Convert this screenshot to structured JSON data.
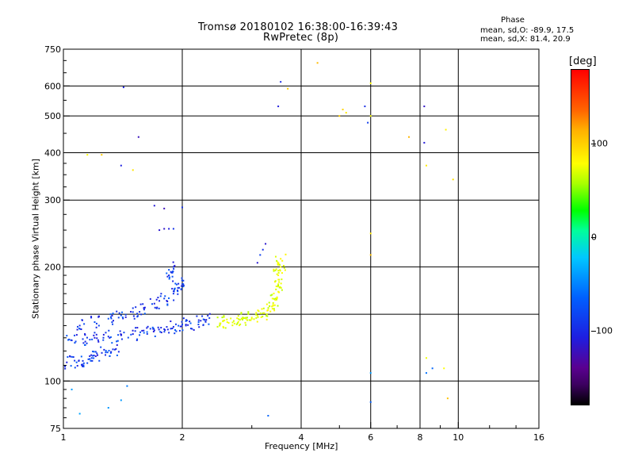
{
  "header": {
    "title_line1": "Tromsø 20180102 16:38:00-16:39:43",
    "title_line2": "RwPretec (8p)"
  },
  "phase_box": {
    "title": "Phase",
    "line_o": "mean, sd,O: -89.9, 17.5",
    "line_x": "mean, sd,X:  81.4, 20.9"
  },
  "colorbar": {
    "unit": "[deg]",
    "ticks": [
      {
        "label": "100",
        "value": 100
      },
      {
        "label": "0",
        "value": 0
      },
      {
        "label": "-100",
        "value": -100
      }
    ],
    "range": [
      -180,
      180
    ]
  },
  "chart_data": {
    "type": "scatter",
    "title": "Tromsø 20180102 16:38:00-16:39:43",
    "subtitle": "RwPretec (8p)",
    "xlabel": "Frequency [MHz]",
    "ylabel": "Stationary phase Virtual Height [km]",
    "x_scale": "log",
    "y_scale": "log",
    "xlim": [
      1,
      16
    ],
    "ylim": [
      75,
      750
    ],
    "x_ticks": [
      {
        "value": 1,
        "label": "1"
      },
      {
        "value": 2,
        "label": "2"
      },
      {
        "value": 4,
        "label": "4"
      },
      {
        "value": 6,
        "label": "6"
      },
      {
        "value": 8,
        "label": "8"
      },
      {
        "value": 10,
        "label": "10"
      },
      {
        "value": 16,
        "label": "16"
      }
    ],
    "x_grid": [
      2,
      4,
      6,
      8,
      10
    ],
    "y_ticks": [
      {
        "value": 75,
        "label": "75"
      },
      {
        "value": 100,
        "label": "100"
      },
      {
        "value": 200,
        "label": "200"
      },
      {
        "value": 300,
        "label": "300"
      },
      {
        "value": 400,
        "label": "400"
      },
      {
        "value": 500,
        "label": "500"
      },
      {
        "value": 600,
        "label": "600"
      },
      {
        "value": 750,
        "label": "750"
      }
    ],
    "y_grid": [
      100,
      150,
      200,
      300,
      400,
      500,
      600
    ],
    "grid": true,
    "colorbar_label": "[deg]",
    "color_value": "phase (deg)",
    "series": [
      {
        "name": "O-mode F-layer trace (blue)",
        "phase": -95,
        "points": [
          [
            1.02,
            112
          ],
          [
            1.08,
            112
          ],
          [
            1.12,
            113
          ],
          [
            1.18,
            115
          ],
          [
            1.22,
            117
          ],
          [
            1.28,
            119
          ],
          [
            1.35,
            121
          ],
          [
            1.05,
            128
          ],
          [
            1.12,
            129
          ],
          [
            1.2,
            130
          ],
          [
            1.3,
            131
          ],
          [
            1.4,
            132
          ],
          [
            1.5,
            133
          ],
          [
            1.6,
            134
          ],
          [
            1.7,
            136
          ],
          [
            1.8,
            137
          ],
          [
            1.9,
            139
          ],
          [
            2.0,
            141
          ],
          [
            2.1,
            142
          ],
          [
            2.2,
            143
          ],
          [
            2.3,
            145
          ],
          [
            1.1,
            140
          ],
          [
            1.2,
            143
          ],
          [
            1.3,
            146
          ],
          [
            1.4,
            149
          ],
          [
            1.5,
            152
          ],
          [
            1.6,
            156
          ],
          [
            1.7,
            160
          ],
          [
            1.8,
            165
          ],
          [
            1.9,
            170
          ],
          [
            1.95,
            176
          ],
          [
            2.0,
            180
          ],
          [
            1.85,
            190
          ],
          [
            1.9,
            200
          ]
        ]
      },
      {
        "name": "X-mode F-layer trace (yellow-green)",
        "phase": 85,
        "points": [
          [
            2.5,
            142
          ],
          [
            2.6,
            143
          ],
          [
            2.7,
            144
          ],
          [
            2.8,
            145
          ],
          [
            2.9,
            146
          ],
          [
            3.0,
            147
          ],
          [
            3.1,
            149
          ],
          [
            3.2,
            151
          ],
          [
            3.3,
            154
          ],
          [
            3.4,
            158
          ],
          [
            3.45,
            165
          ],
          [
            3.5,
            172
          ],
          [
            3.5,
            180
          ],
          [
            3.5,
            190
          ],
          [
            3.55,
            200
          ],
          [
            3.55,
            210
          ]
        ]
      },
      {
        "name": "Upper oblique echoes (blue/purple)",
        "phase": -110,
        "points": [
          [
            1.75,
            250
          ],
          [
            1.8,
            252
          ],
          [
            1.85,
            252
          ],
          [
            1.9,
            252
          ],
          [
            1.7,
            290
          ],
          [
            1.8,
            285
          ],
          [
            2.0,
            287
          ],
          [
            3.1,
            205
          ],
          [
            3.15,
            215
          ],
          [
            3.2,
            222
          ],
          [
            3.25,
            230
          ],
          [
            3.5,
            530
          ],
          [
            3.55,
            615
          ],
          [
            1.4,
            370
          ],
          [
            1.42,
            595
          ],
          [
            1.55,
            440
          ],
          [
            8.2,
            425
          ],
          [
            8.2,
            530
          ],
          [
            5.9,
            480
          ],
          [
            5.8,
            530
          ]
        ]
      },
      {
        "name": "Scattered high-altitude echoes (yellow/orange/red)",
        "phase": 110,
        "points": [
          [
            4.4,
            690
          ],
          [
            5.0,
            500
          ],
          [
            5.1,
            520
          ],
          [
            5.2,
            510
          ],
          [
            6.0,
            610
          ],
          [
            6.0,
            500
          ],
          [
            7.5,
            440
          ],
          [
            9.3,
            460
          ],
          [
            8.3,
            370
          ],
          [
            9.7,
            340
          ],
          [
            6.0,
            245
          ],
          [
            6.0,
            215
          ],
          [
            8.3,
            115
          ],
          [
            9.2,
            108
          ],
          [
            9.4,
            90
          ],
          [
            1.15,
            395
          ],
          [
            1.25,
            395
          ],
          [
            1.5,
            360
          ],
          [
            3.7,
            590
          ]
        ]
      },
      {
        "name": "Low-altitude sporadic echoes (mixed)",
        "phase": -60,
        "points": [
          [
            1.05,
            95
          ],
          [
            1.1,
            82
          ],
          [
            1.3,
            85
          ],
          [
            1.4,
            89
          ],
          [
            1.45,
            97
          ],
          [
            3.3,
            81
          ],
          [
            6.0,
            105
          ],
          [
            6.0,
            88
          ],
          [
            8.3,
            105
          ],
          [
            8.6,
            108
          ]
        ]
      }
    ]
  }
}
